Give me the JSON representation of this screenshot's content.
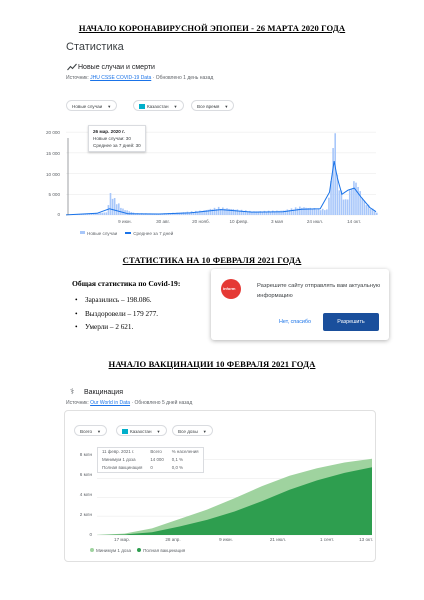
{
  "headings": {
    "h1": "НАЧАЛО КОРОНАВИРУСНОЙ ЭПОПЕИ - 26 МАРТА 2020 ГОДА",
    "h2": "СТАТИСТИКА НА 10 ФЕВРАЛЯ 2021 ГОДА",
    "h3": "НАЧАЛО ВАКЦИНАЦИИ 10 ФЕВРАЛЯ 2021 ГОДА"
  },
  "cases_panel": {
    "section_title": "Статистика",
    "chart_title": "Новые случаи и смерти",
    "source_prefix": "Источник:",
    "source_link": "JHU CSSE COVID-19 Data",
    "source_suffix": "· Обновлено 1 день назад",
    "filters": [
      "Новые случаи",
      "Казахстан",
      "Все время"
    ],
    "tooltip": {
      "date": "26 мар. 2020 г.",
      "line1": "Новые случаи: 30",
      "line2": "Среднее за 7 дней: 30"
    },
    "legend": {
      "bars": "Новые случаи",
      "line": "Среднее за 7 дней"
    }
  },
  "stats": {
    "title": "Общая статистика по Covid-19:",
    "items": [
      "Заразились – 198.086.",
      "Выздоровели – 179 277.",
      "Умерли – 2 621."
    ]
  },
  "notification": {
    "logo_text": "inform",
    "text": "Разрешите сайту отправлять вам актуальную информацию",
    "no": "Нет, спасибо",
    "yes": "Разрешить"
  },
  "vaccination_panel": {
    "title": "Вакцинация",
    "source_prefix": "Источник:",
    "source_link": "Our World in Data",
    "source_suffix": "· Обновлено 5 дней назад",
    "filters": [
      "Всего",
      "Казахстан",
      "Все дозы"
    ],
    "tooltip": {
      "date": "11 февр. 2021 г.",
      "col_total": "Всего",
      "col_pct": "% населения",
      "row1_label": "Минимум 1 доза",
      "row1_total": "14 000",
      "row1_pct": "0,1 %",
      "row2_label": "Полная вакцинация",
      "row2_total": "0",
      "row2_pct": "0,0 %"
    },
    "legend": {
      "first": "Минимум 1 доза",
      "second": "Полная вакцинация"
    }
  },
  "chart_data": [
    {
      "type": "bar",
      "title": "Новые случаи и смерти",
      "x_ticks": [
        "9 июн.",
        "30 авг.",
        "20 нояб.",
        "10 февр.",
        "3 мая",
        "24 июл.",
        "14 окт."
      ],
      "y_ticks": [
        "0",
        "5 000",
        "10 000",
        "15 000",
        "20 000"
      ],
      "ylim": [
        0,
        21000
      ],
      "series": [
        {
          "name": "Новые случаи",
          "x": [
            0,
            0.13,
            0.14,
            0.18,
            0.22,
            0.3,
            0.37,
            0.44,
            0.49,
            0.6,
            0.7,
            0.75,
            0.84,
            0.855,
            0.86,
            0.865,
            0.87,
            0.875,
            0.88,
            0.9,
            0.93,
            0.96,
            1.0
          ],
          "values": [
            30,
            600,
            4800,
            1400,
            400,
            300,
            600,
            1000,
            1700,
            800,
            1000,
            1800,
            1200,
            9000,
            16500,
            21000,
            10000,
            7500,
            6000,
            3200,
            8000,
            3000,
            500
          ]
        },
        {
          "name": "Среднее за 7 дней",
          "x": [
            0,
            0.1,
            0.14,
            0.16,
            0.2,
            0.3,
            0.4,
            0.5,
            0.6,
            0.7,
            0.76,
            0.82,
            0.85,
            0.865,
            0.875,
            0.89,
            0.91,
            0.93,
            0.95,
            0.98,
            1.0
          ],
          "values": [
            30,
            400,
            1500,
            1100,
            300,
            250,
            500,
            1300,
            700,
            800,
            1400,
            1500,
            5500,
            13000,
            9000,
            5000,
            6000,
            6500,
            4500,
            1800,
            800
          ]
        }
      ]
    },
    {
      "type": "area",
      "title": "Вакцинация",
      "x_ticks": [
        "17 мар.",
        "28 апр.",
        "9 июн.",
        "21 июл.",
        "1 сент.",
        "13 окт."
      ],
      "y_ticks": [
        "0",
        "2 млн",
        "4 млн",
        "6 млн",
        "8 млн"
      ],
      "ylim": [
        0,
        8500000
      ],
      "series": [
        {
          "name": "Минимум 1 доза",
          "x": [
            0,
            0.1,
            0.2,
            0.3,
            0.4,
            0.5,
            0.6,
            0.7,
            0.8,
            0.9,
            1.0
          ],
          "values": [
            14000,
            150000,
            700000,
            1700000,
            2700000,
            3900000,
            5200000,
            6300000,
            7100000,
            7700000,
            8100000
          ]
        },
        {
          "name": "Полная вакцинация",
          "x": [
            0,
            0.1,
            0.2,
            0.3,
            0.4,
            0.5,
            0.6,
            0.7,
            0.8,
            0.9,
            1.0
          ],
          "values": [
            0,
            50000,
            300000,
            900000,
            1600000,
            2500000,
            3600000,
            4800000,
            5800000,
            6600000,
            7200000
          ]
        }
      ]
    }
  ]
}
